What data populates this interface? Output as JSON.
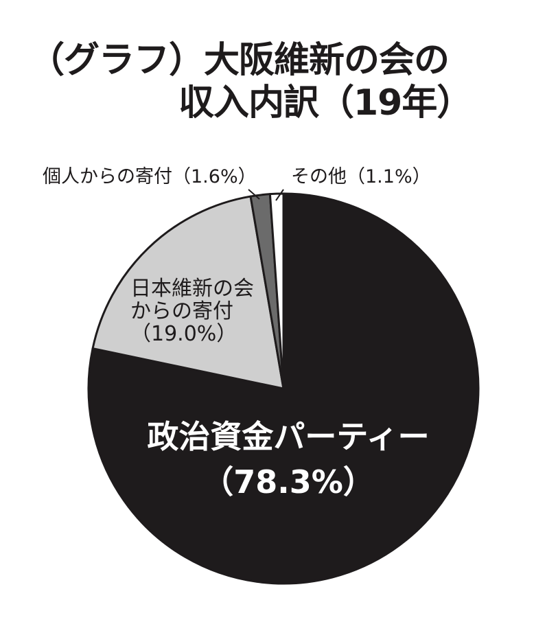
{
  "title_line1": "（グラフ）大阪維新の会の",
  "title_line2": "収入内訳（19年）",
  "chart_data": {
    "type": "pie",
    "start": "12 o'clock",
    "direction": "clockwise",
    "slices": [
      {
        "label_lines": [
          "政治資金パーティー",
          "（78.3%）"
        ],
        "value": 78.3,
        "color": "#1e1b1c",
        "text_color": "#ffffff",
        "label_position": "inside"
      },
      {
        "label_lines": [
          "日本維新の会",
          "からの寄付",
          "（19.0%）"
        ],
        "value": 19.0,
        "color": "#cfcfcf",
        "text_color": "#1e1b1c",
        "label_position": "inside"
      },
      {
        "label_lines": [
          "個人からの寄付（1.6%）"
        ],
        "value": 1.6,
        "color": "#6b6b6b",
        "text_color": "#1e1b1c",
        "label_position": "outside"
      },
      {
        "label_lines": [
          "その他（1.1%）"
        ],
        "value": 1.1,
        "color": "#ffffff",
        "text_color": "#1e1b1c",
        "label_position": "outside"
      }
    ]
  }
}
